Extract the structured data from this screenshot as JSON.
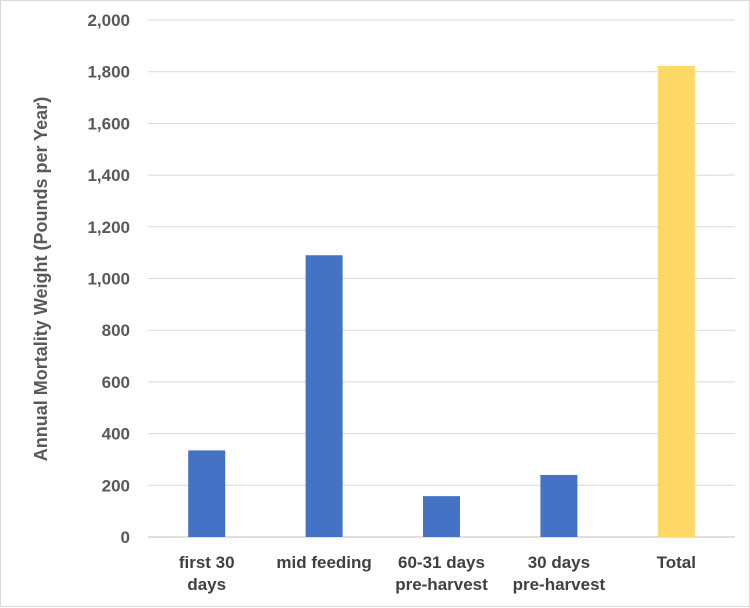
{
  "chart_data": {
    "type": "bar",
    "title": "",
    "xlabel": "",
    "ylabel": "Annual Mortality Weight (Pounds per Year)",
    "ylim": [
      0,
      2000
    ],
    "ytick_step": 200,
    "ytick_labels": [
      "0",
      "200",
      "400",
      "600",
      "800",
      "1,000",
      "1,200",
      "1,400",
      "1,600",
      "1,800",
      "2,000"
    ],
    "grid": true,
    "categories": [
      {
        "lines": [
          "first 30",
          "days"
        ]
      },
      {
        "lines": [
          "mid feeding"
        ]
      },
      {
        "lines": [
          "60-31 days",
          "pre-harvest"
        ]
      },
      {
        "lines": [
          "30 days",
          "pre-harvest"
        ]
      },
      {
        "lines": [
          "Total"
        ]
      }
    ],
    "values": [
      335,
      1090,
      158,
      240,
      1822
    ],
    "colors": [
      "#4472c4",
      "#4472c4",
      "#4472c4",
      "#4472c4",
      "#ffd966"
    ]
  }
}
